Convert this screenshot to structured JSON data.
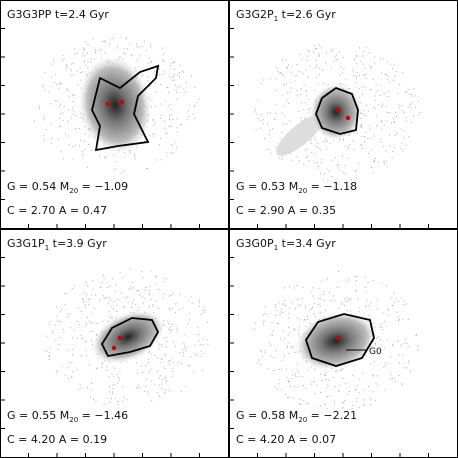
{
  "labels": {
    "G": "G  =",
    "M": "M",
    "M_sub": "20",
    "eq": "=",
    "C": "C  =",
    "A": "A  ="
  },
  "panels": [
    {
      "name": "G3G3PP",
      "sub": "",
      "time": "t=2.4 Gyr",
      "G": "0.54",
      "M20": "−1.09",
      "C": "2.70",
      "A": "0.47"
    },
    {
      "name": "G3G2P",
      "sub": "1",
      "time": "t=2.6 Gyr",
      "G": "0.53",
      "M20": "−1.18",
      "C": "2.90",
      "A": "0.35"
    },
    {
      "name": "G3G1P",
      "sub": "1",
      "time": "t=3.9 Gyr",
      "G": "0.55",
      "M20": "−1.46",
      "C": "4.20",
      "A": "0.19"
    },
    {
      "name": "G3G0P",
      "sub": "1",
      "time": "t=3.4 Gyr",
      "G": "0.58",
      "M20": "−2.21",
      "C": "4.20",
      "A": "0.07",
      "note": "G0"
    }
  ]
}
